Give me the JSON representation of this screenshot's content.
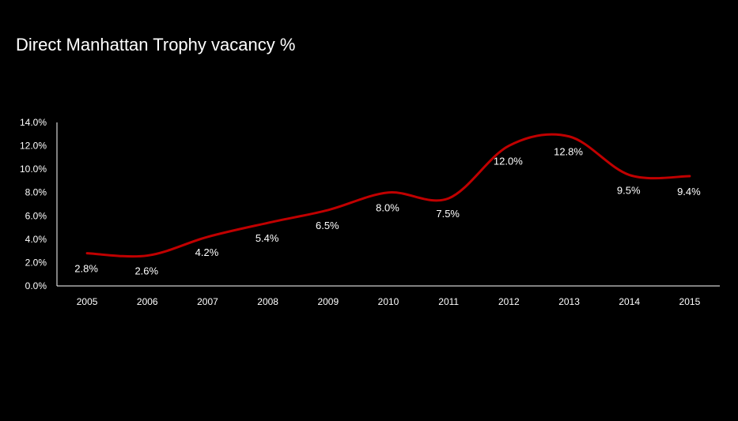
{
  "chart_data": {
    "type": "line",
    "title": "Direct Manhattan Trophy vacancy  %",
    "xlabel": "",
    "ylabel": "",
    "categories": [
      "2005",
      "2006",
      "2007",
      "2008",
      "2009",
      "2010",
      "2011",
      "2012",
      "2013",
      "2014",
      "2015"
    ],
    "series": [
      {
        "values": [
          2.8,
          2.6,
          4.2,
          5.4,
          6.5,
          8.0,
          7.5,
          12.0,
          12.8,
          9.5,
          9.4
        ],
        "labels": [
          "2.8%",
          "2.6%",
          "4.2%",
          "5.4%",
          "6.5%",
          "8.0%",
          "7.5%",
          "12.0%",
          "12.8%",
          "9.5%",
          "9.4%"
        ],
        "color": "#c00000"
      }
    ],
    "ylim": [
      0,
      14
    ],
    "yticks": [
      "0.0%",
      "2.0%",
      "4.0%",
      "6.0%",
      "8.0%",
      "10.0%",
      "12.0%",
      "14.0%"
    ],
    "grid": false,
    "legend": "none",
    "line_style": "smooth"
  }
}
